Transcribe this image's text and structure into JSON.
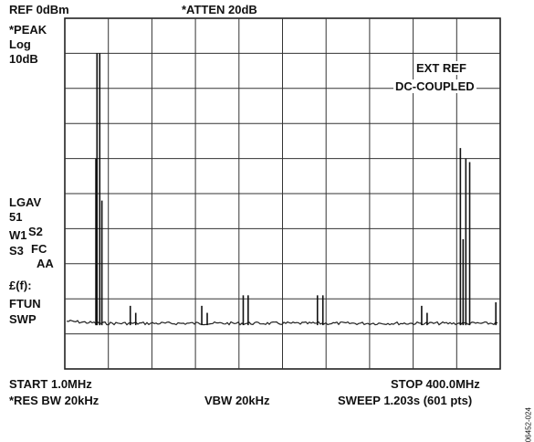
{
  "header": {
    "ref": "REF 0dBm",
    "atten": "*ATTEN 20dB"
  },
  "left_labels": {
    "peak": "*PEAK",
    "log": "Log",
    "scale": "10dB",
    "lgav": "LGAV",
    "lgav_count": "51",
    "w1": "W1",
    "s2": "S2",
    "s3": "S3",
    "fc": "FC",
    "aa": "AA",
    "ff": "£(f):",
    "ftun": "FTUN",
    "swp": "SWP"
  },
  "annotations": {
    "ext_ref": "EXT REF",
    "dc_coupled": "DC-COUPLED"
  },
  "footer": {
    "start": "START 1.0MHz",
    "stop": "STOP 400.0MHz",
    "res_bw": "*RES BW 20kHz",
    "vbw": "VBW 20kHz",
    "sweep": "SWEEP 1.203s (601 pts)"
  },
  "figure_id": "06452-024",
  "chart_data": {
    "type": "line",
    "xlabel": "",
    "ylabel": "",
    "x_range_mhz": [
      1.0,
      400.0
    ],
    "y_range_db": [
      -100,
      0
    ],
    "y_divisions": 10,
    "x_divisions": 10,
    "grid": true,
    "noise_floor_db": -87,
    "spurs": [
      {
        "x_mhz": 30.5,
        "db": -10
      },
      {
        "x_mhz": 33.0,
        "db": -10
      },
      {
        "x_mhz": 29.5,
        "db": -40
      },
      {
        "x_mhz": 35.0,
        "db": -52
      },
      {
        "x_mhz": 61.0,
        "db": -82
      },
      {
        "x_mhz": 66.0,
        "db": -84
      },
      {
        "x_mhz": 126.5,
        "db": -82
      },
      {
        "x_mhz": 131.5,
        "db": -84
      },
      {
        "x_mhz": 164.5,
        "db": -79
      },
      {
        "x_mhz": 169.0,
        "db": -79
      },
      {
        "x_mhz": 232.5,
        "db": -79
      },
      {
        "x_mhz": 237.5,
        "db": -79
      },
      {
        "x_mhz": 328.0,
        "db": -82
      },
      {
        "x_mhz": 333.0,
        "db": -84
      },
      {
        "x_mhz": 366.0,
        "db": -63
      },
      {
        "x_mhz": 363.5,
        "db": -37
      },
      {
        "x_mhz": 368.5,
        "db": -40
      },
      {
        "x_mhz": 372.0,
        "db": -41
      },
      {
        "x_mhz": 396.0,
        "db": -81
      }
    ]
  }
}
